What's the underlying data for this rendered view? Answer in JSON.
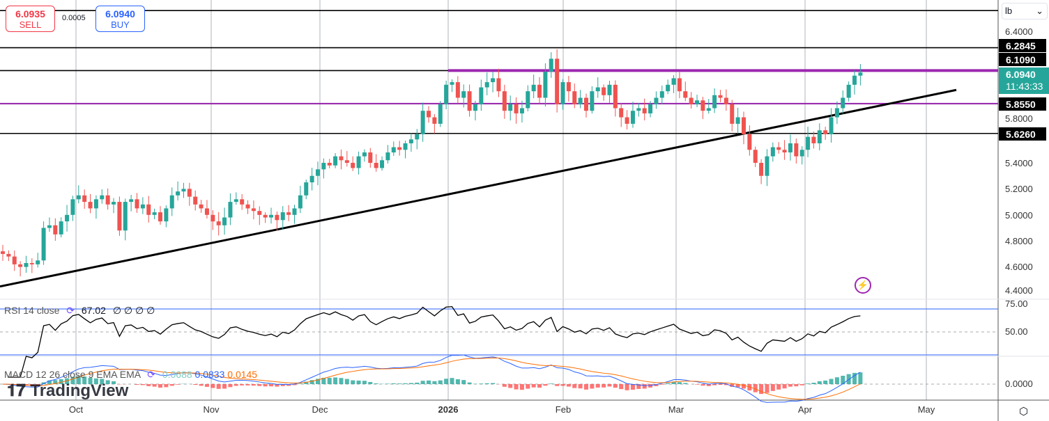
{
  "trade": {
    "sell_price": "6.0935",
    "sell_label": "SELL",
    "spread": "0.0005",
    "buy_price": "6.0940",
    "buy_label": "BUY"
  },
  "price_axis": {
    "unit": "lb",
    "ticks": [
      "6.4000",
      "5.8000",
      "5.4000",
      "5.2000",
      "5.0000",
      "4.8000",
      "4.6000",
      "4.4000"
    ],
    "tags": [
      "6.2845",
      "6.1090",
      "5.8550",
      "5.6260"
    ],
    "last_price": "6.0940",
    "countdown": "11:43:33"
  },
  "time_axis": [
    "Oct",
    "Nov",
    "Dec",
    "2026",
    "Feb",
    "Mar",
    "Apr",
    "May"
  ],
  "rsi": {
    "label": "RSI 14 close",
    "value": "67.02",
    "extras": "∅ ∅ ∅ ∅",
    "ticks": [
      "75.00",
      "50.00"
    ]
  },
  "macd": {
    "label": "MACD 12 26 close 9 EMA EMA",
    "hist": "0.0688",
    "macd": "0.0833",
    "signal": "0.0145",
    "tick": "0.0000"
  },
  "logo": "TradingView",
  "colors": {
    "up": "#26a69a",
    "down": "#ef5350",
    "level": "#9c27b0",
    "macd": "#2962ff",
    "signal": "#ff6d00"
  },
  "chart_data": {
    "type": "candlestick",
    "y_range": [
      4.4,
      6.4
    ],
    "horizontal_levels": [
      6.57,
      6.2845,
      6.109,
      5.855,
      5.626
    ],
    "purple_levels": [
      6.109,
      5.855
    ],
    "trendline": {
      "from": [
        "2025-09-17",
        4.45
      ],
      "to": [
        "2026-05-08",
        5.96
      ]
    },
    "closes": [
      4.7,
      4.68,
      4.62,
      4.6,
      4.63,
      4.62,
      4.65,
      4.9,
      4.92,
      4.85,
      4.95,
      5.0,
      5.12,
      5.15,
      5.1,
      5.05,
      5.12,
      5.15,
      5.08,
      5.1,
      4.88,
      5.1,
      5.12,
      5.05,
      5.08,
      5.0,
      5.02,
      4.95,
      5.05,
      5.15,
      5.18,
      5.2,
      5.14,
      5.08,
      5.05,
      5.0,
      4.95,
      4.92,
      4.98,
      5.1,
      5.12,
      5.08,
      5.05,
      5.03,
      5.0,
      4.98,
      5.0,
      4.96,
      5.02,
      5.0,
      5.05,
      5.15,
      5.25,
      5.3,
      5.35,
      5.4,
      5.38,
      5.45,
      5.42,
      5.4,
      5.36,
      5.45,
      5.48,
      5.4,
      5.36,
      5.42,
      5.48,
      5.52,
      5.5,
      5.55,
      5.58,
      5.62,
      5.8,
      5.75,
      5.7,
      5.85,
      6.0,
      6.02,
      5.9,
      5.95,
      5.8,
      5.85,
      5.98,
      6.02,
      6.05,
      5.95,
      5.8,
      5.85,
      5.78,
      5.82,
      5.95,
      6.0,
      5.9,
      6.1,
      6.2,
      5.85,
      6.02,
      5.95,
      5.85,
      5.9,
      5.8,
      5.95,
      5.98,
      5.92,
      6.0,
      5.82,
      5.75,
      5.7,
      5.8,
      5.82,
      5.78,
      5.85,
      5.9,
      5.95,
      6.0,
      6.05,
      5.95,
      5.9,
      5.85,
      5.88,
      5.8,
      5.82,
      5.92,
      5.9,
      5.85,
      5.7,
      5.75,
      5.62,
      5.5,
      5.4,
      5.3,
      5.45,
      5.52,
      5.5,
      5.48,
      5.55,
      5.45,
      5.5,
      5.6,
      5.55,
      5.65,
      5.62,
      5.75,
      5.82,
      5.9,
      6.0,
      6.07,
      6.094
    ]
  }
}
